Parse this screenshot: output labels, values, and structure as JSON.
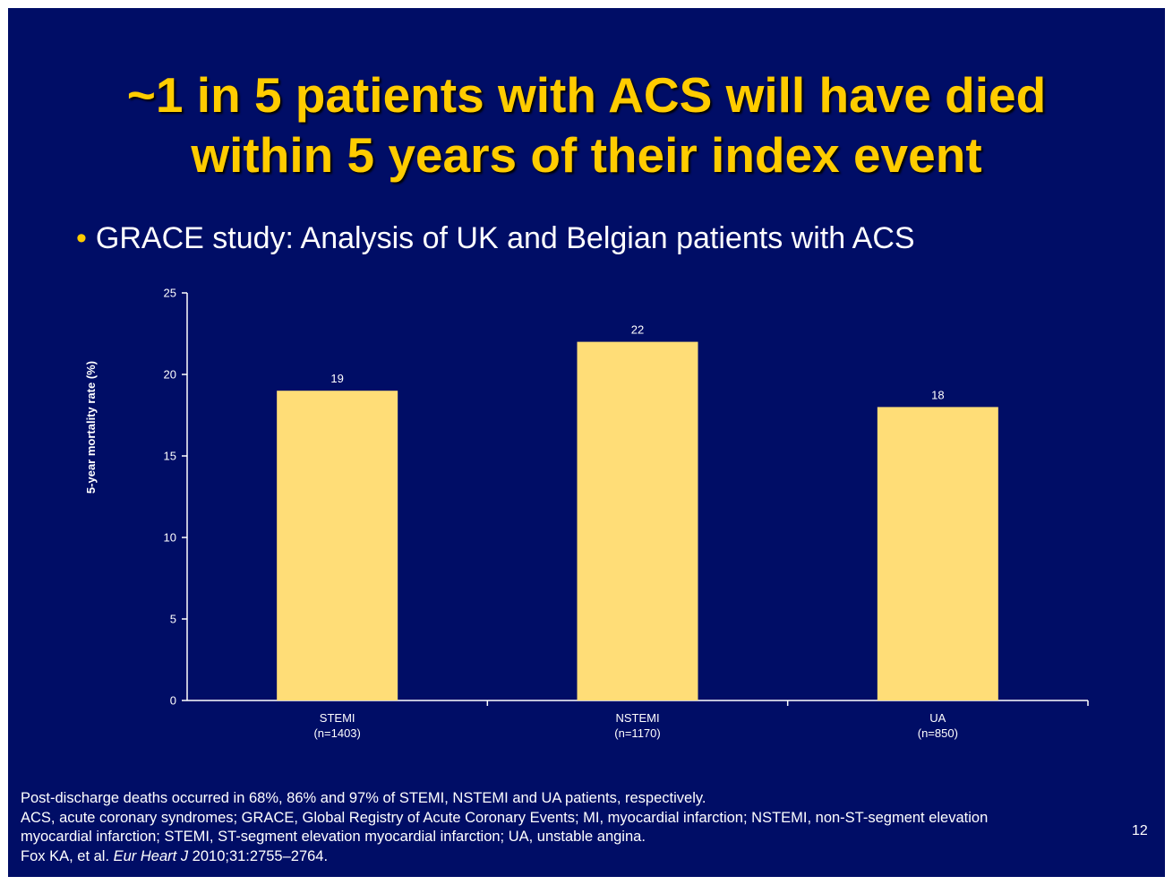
{
  "slide": {
    "title_line1": "~1 in 5 patients with ACS will have died",
    "title_line2": "within 5 years of their index event",
    "bullet": "GRACE study: Analysis of UK and Belgian patients with ACS",
    "page_number": "12",
    "colors": {
      "background": "#000d66",
      "title": "#ffcc00",
      "bar": "#ffdd77",
      "text": "#ffffff"
    }
  },
  "chart_data": {
    "type": "bar",
    "categories": [
      "STEMI",
      "NSTEMI",
      "UA"
    ],
    "category_sublabels": [
      "(n=1403)",
      "(n=1170)",
      "(n=850)"
    ],
    "values": [
      19,
      22,
      18
    ],
    "data_labels": [
      "19",
      "22",
      "18"
    ],
    "ylabel": "5-year mortality rate (%)",
    "ylim": [
      0,
      25
    ],
    "yticks": [
      0,
      5,
      10,
      15,
      20,
      25
    ],
    "grid": false,
    "legend": "none"
  },
  "footnotes": {
    "line1": "Post-discharge deaths occurred in 68%, 86% and 97% of STEMI, NSTEMI and UA patients, respectively.",
    "line2": "ACS, acute coronary syndromes; GRACE, Global Registry of Acute Coronary Events; MI, myocardial infarction; NSTEMI, non-ST-segment elevation",
    "line3": "myocardial infarction; STEMI, ST-segment elevation myocardial infarction; UA, unstable angina.",
    "ref_prefix": "Fox KA, et al. ",
    "ref_journal": "Eur Heart J",
    "ref_suffix": " 2010;31:2755–2764."
  }
}
